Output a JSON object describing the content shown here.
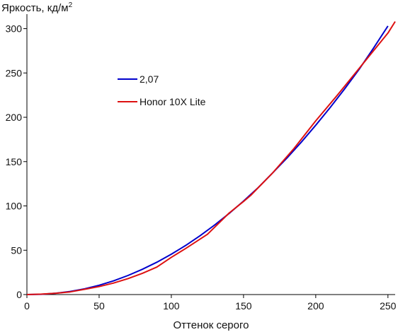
{
  "chart_data": {
    "type": "line",
    "title": "",
    "ylabel_base": "Яркость, кд/м",
    "ylabel_sup": "2",
    "xlabel": "Оттенок серого",
    "xlim": [
      0,
      255
    ],
    "ylim": [
      0,
      310
    ],
    "x_ticks": [
      0,
      50,
      100,
      150,
      200,
      250
    ],
    "y_ticks": [
      0,
      50,
      100,
      150,
      200,
      250,
      300
    ],
    "grid": false,
    "legend_position": "upper-left",
    "series": [
      {
        "name": "2,07",
        "color": "#0000cc",
        "x": [
          0,
          10,
          20,
          30,
          40,
          50,
          60,
          70,
          80,
          90,
          100,
          110,
          120,
          130,
          140,
          150,
          160,
          170,
          180,
          190,
          200,
          210,
          220,
          230,
          240,
          250
        ],
        "y": [
          0,
          0.3,
          1.5,
          3.5,
          6.5,
          10.5,
          15.5,
          21.5,
          28.5,
          36.5,
          45.5,
          55.5,
          66.5,
          78.5,
          91.5,
          105.5,
          120.5,
          137,
          154,
          172,
          191,
          211,
          232,
          254,
          278,
          303
        ]
      },
      {
        "name": "Honor 10X Lite",
        "color": "#dd1111",
        "x": [
          0,
          10,
          20,
          30,
          40,
          50,
          60,
          70,
          80,
          90,
          100,
          110,
          125,
          140,
          150,
          155,
          170,
          185,
          200,
          215,
          230,
          240,
          250,
          255
        ],
        "y": [
          0,
          0.5,
          1.5,
          3,
          6,
          9,
          13,
          18,
          24,
          31,
          42,
          52,
          68,
          92,
          105,
          112,
          137,
          165,
          196,
          225,
          255,
          275,
          295,
          308
        ]
      }
    ]
  }
}
